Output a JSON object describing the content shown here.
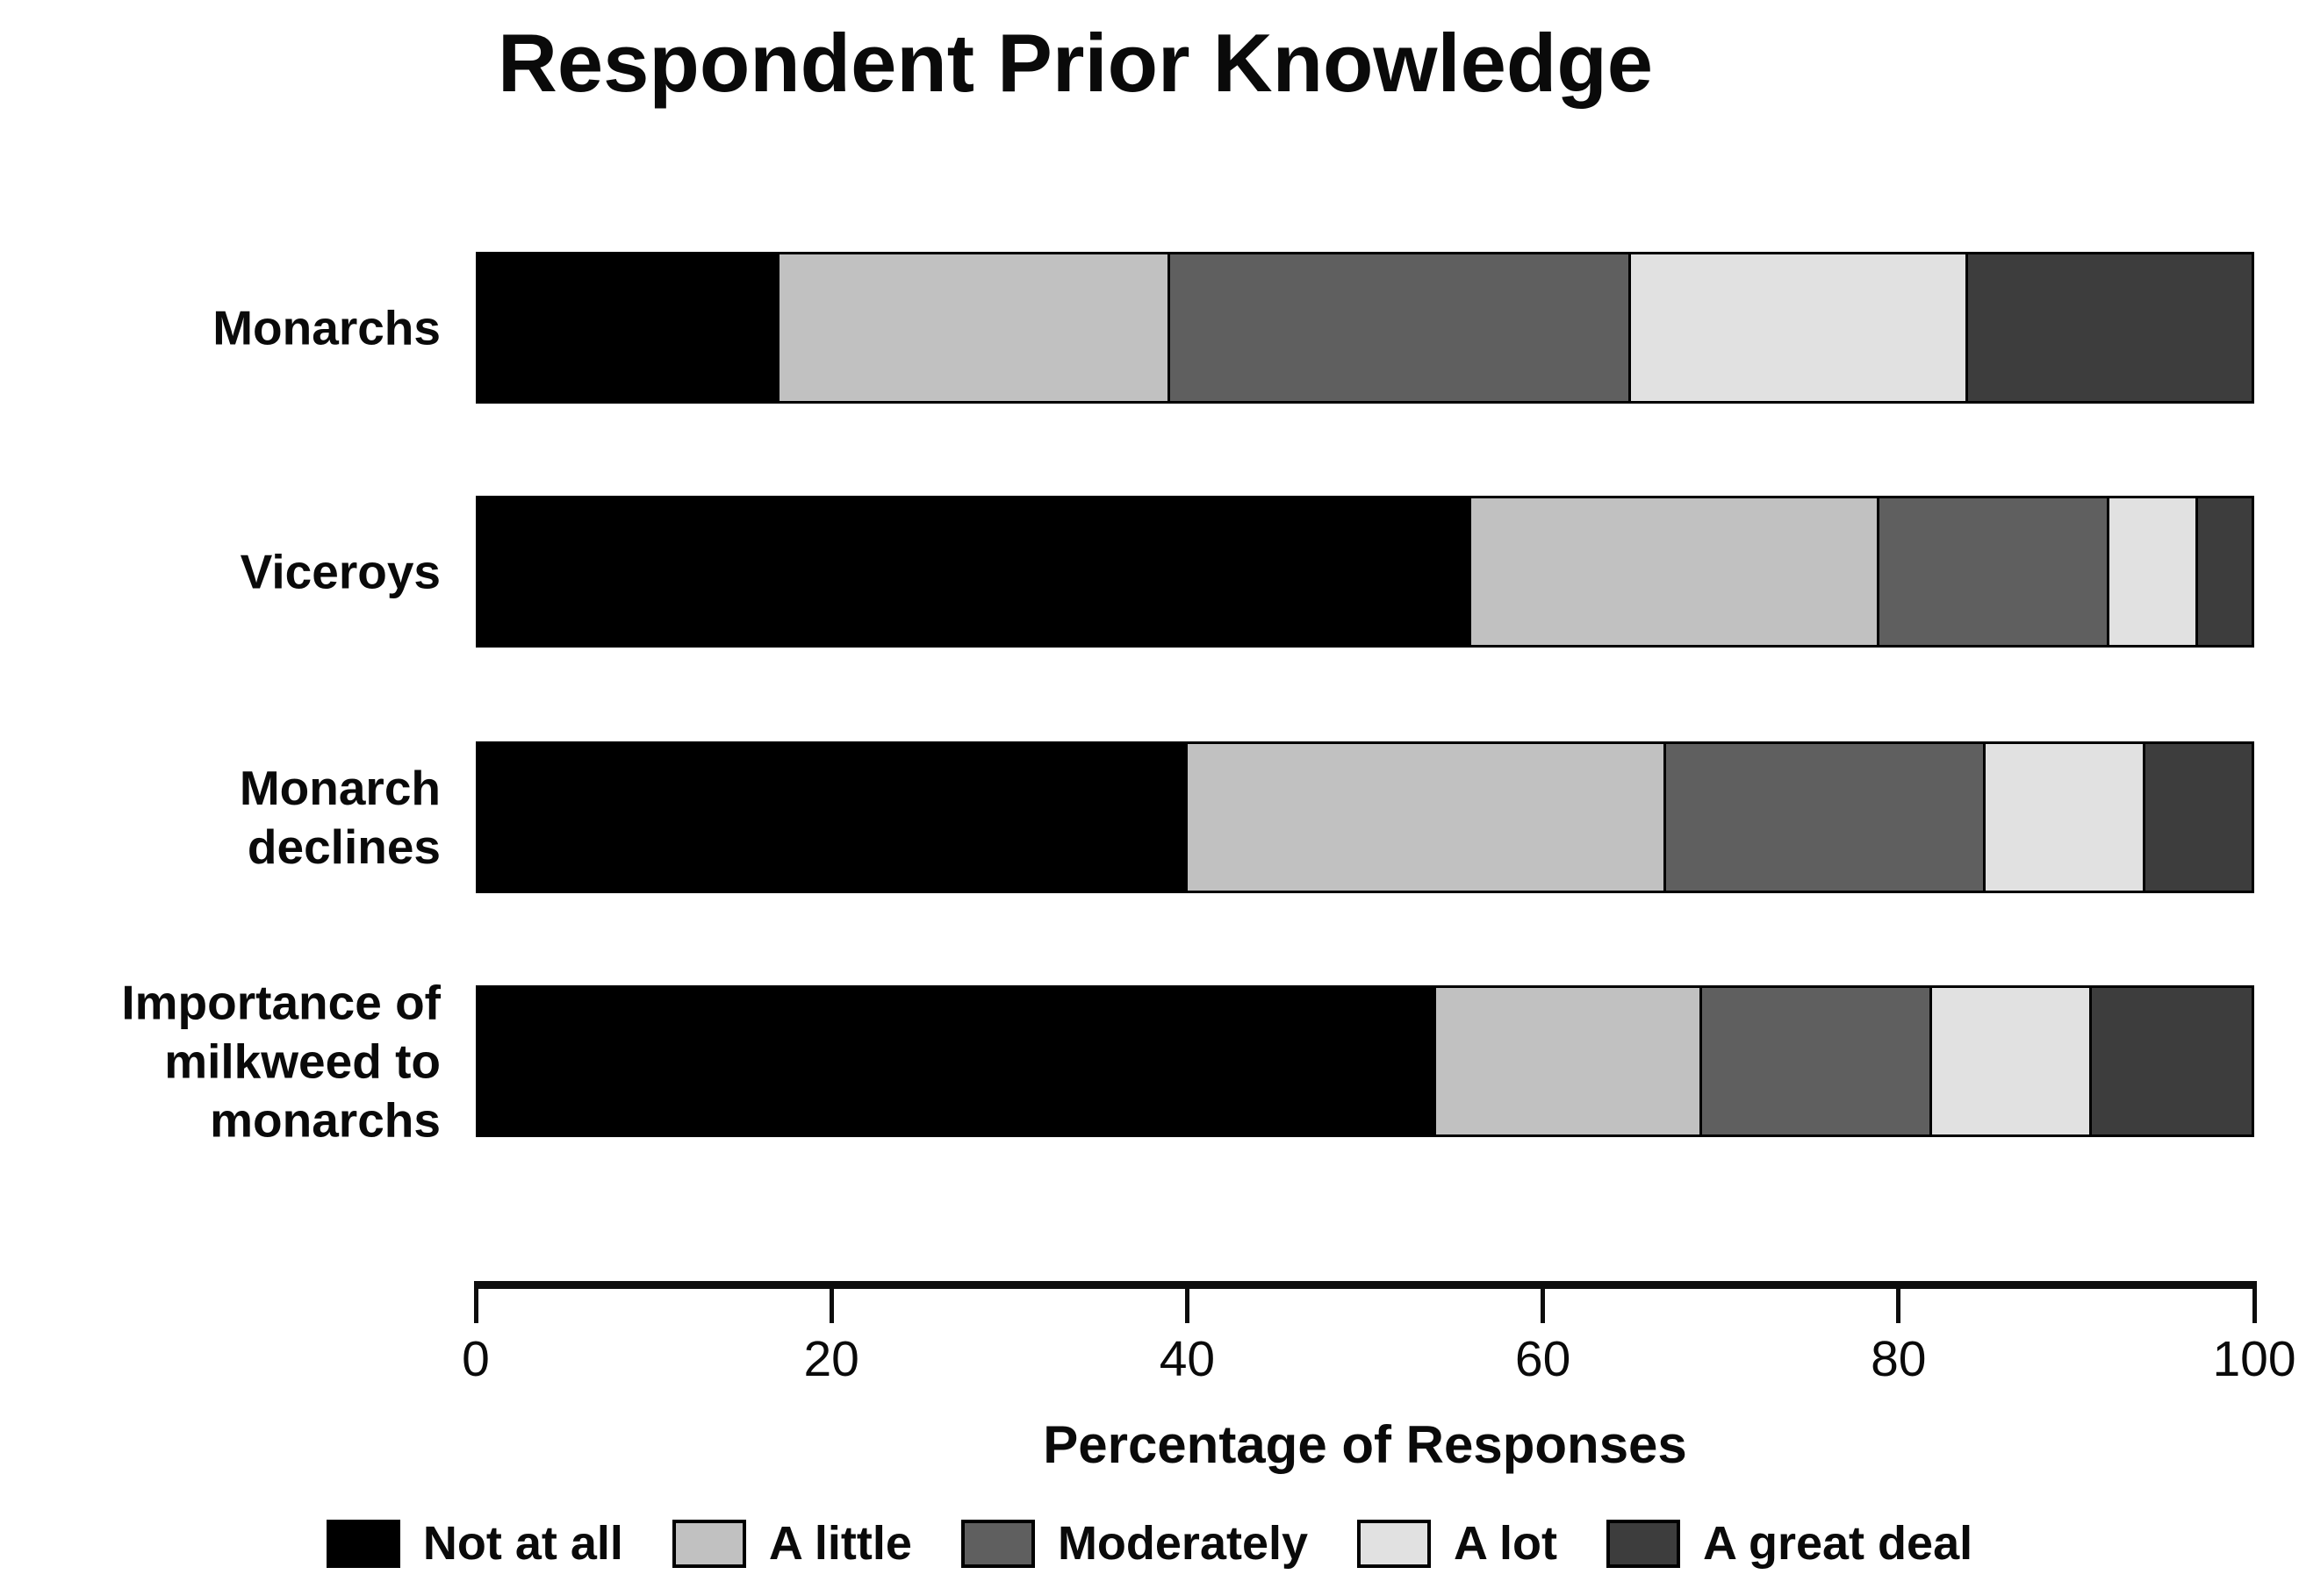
{
  "title": "Respondent Prior Knowledge",
  "chart_data": {
    "type": "bar",
    "orientation": "horizontal",
    "stacked": true,
    "title": "Respondent Prior Knowledge",
    "xlabel": "Percentage of Responses",
    "xlim": [
      0,
      100
    ],
    "xticks": [
      0,
      20,
      40,
      60,
      80,
      100
    ],
    "grid": false,
    "legend_position": "bottom",
    "categories": [
      "Monarchs",
      "Viceroys",
      "Monarch declines",
      "Importance of milkweed to monarchs"
    ],
    "series": [
      {
        "name": "Not at all",
        "color": "#000000",
        "values": [
          17,
          56,
          40,
          54
        ]
      },
      {
        "name": "A little",
        "color": "#c1c1c1",
        "values": [
          22,
          23,
          27,
          15
        ]
      },
      {
        "name": "Moderately",
        "color": "#5f5f5f",
        "values": [
          26,
          13,
          18,
          13
        ]
      },
      {
        "name": "A lot",
        "color": "#e1e1e1",
        "values": [
          19,
          5,
          9,
          9
        ]
      },
      {
        "name": "A great deal",
        "color": "#3d3d3d",
        "values": [
          16,
          3,
          6,
          9
        ]
      }
    ]
  },
  "colors": {
    "axis": "#0d0d0d",
    "text": "#0a0a0a",
    "background": "#ffffff"
  }
}
